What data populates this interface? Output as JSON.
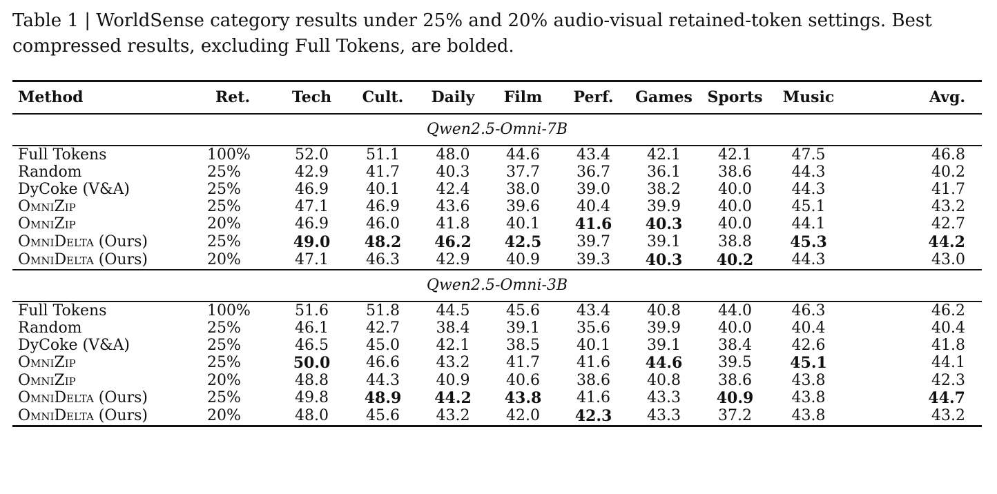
{
  "caption": "Table 1 | WorldSense category results under 25% and 20% audio-visual retained-token settings. Best compressed results, excluding Full Tokens, are bolded.",
  "columns": [
    "Method",
    "Ret.",
    "Tech",
    "Cult.",
    "Daily",
    "Film",
    "Perf.",
    "Games",
    "Sports",
    "Music",
    "Avg."
  ],
  "groups": [
    {
      "title": "Qwen2.5-Omni-7B",
      "rows": [
        {
          "method": "Full Tokens",
          "sc": false,
          "suffix": "",
          "style": "highlight",
          "cells": [
            "100%",
            "52.0",
            "51.1",
            "48.0",
            "44.6",
            "43.4",
            "42.1",
            "42.1",
            "47.5",
            "46.8"
          ],
          "bold": [
            false,
            false,
            false,
            false,
            false,
            false,
            false,
            false,
            false,
            false
          ]
        },
        {
          "method": "Random",
          "sc": false,
          "suffix": "",
          "style": "",
          "cells": [
            "25%",
            "42.9",
            "41.7",
            "40.3",
            "37.7",
            "36.7",
            "36.1",
            "38.6",
            "44.3",
            "40.2"
          ],
          "bold": [
            false,
            false,
            false,
            false,
            false,
            false,
            false,
            false,
            false,
            false
          ]
        },
        {
          "method": "DyCoke (V&A)",
          "sc": false,
          "suffix": "",
          "style": "",
          "cells": [
            "25%",
            "46.9",
            "40.1",
            "42.4",
            "38.0",
            "39.0",
            "38.2",
            "40.0",
            "44.3",
            "41.7"
          ],
          "bold": [
            false,
            false,
            false,
            false,
            false,
            false,
            false,
            false,
            false,
            false
          ]
        },
        {
          "method": "OmniZip",
          "sc": true,
          "suffix": "",
          "style": "",
          "cells": [
            "25%",
            "47.1",
            "46.9",
            "43.6",
            "39.6",
            "40.4",
            "39.9",
            "40.0",
            "45.1",
            "43.2"
          ],
          "bold": [
            false,
            false,
            false,
            false,
            false,
            false,
            false,
            false,
            false,
            false
          ]
        },
        {
          "method": "OmniZip",
          "sc": true,
          "suffix": "",
          "style": "",
          "cells": [
            "20%",
            "46.9",
            "46.0",
            "41.8",
            "40.1",
            "41.6",
            "40.3",
            "40.0",
            "44.1",
            "42.7"
          ],
          "bold": [
            false,
            false,
            false,
            false,
            false,
            true,
            true,
            false,
            false,
            false
          ]
        },
        {
          "method": "OmniDelta",
          "sc": true,
          "suffix": " (Ours)",
          "style": "ours",
          "cells": [
            "25%",
            "49.0",
            "48.2",
            "46.2",
            "42.5",
            "39.7",
            "39.1",
            "38.8",
            "45.3",
            "44.2"
          ],
          "bold": [
            false,
            true,
            true,
            true,
            true,
            false,
            false,
            false,
            true,
            true
          ]
        },
        {
          "method": "OmniDelta",
          "sc": true,
          "suffix": " (Ours)",
          "style": "ours",
          "cells": [
            "20%",
            "47.1",
            "46.3",
            "42.9",
            "40.9",
            "39.3",
            "40.3",
            "40.2",
            "44.3",
            "43.0"
          ],
          "bold": [
            false,
            false,
            false,
            false,
            false,
            false,
            true,
            true,
            false,
            false
          ]
        }
      ]
    },
    {
      "title": "Qwen2.5-Omni-3B",
      "rows": [
        {
          "method": "Full Tokens",
          "sc": false,
          "suffix": "",
          "style": "highlight",
          "cells": [
            "100%",
            "51.6",
            "51.8",
            "44.5",
            "45.6",
            "43.4",
            "40.8",
            "44.0",
            "46.3",
            "46.2"
          ],
          "bold": [
            false,
            false,
            false,
            false,
            false,
            false,
            false,
            false,
            false,
            false
          ]
        },
        {
          "method": "Random",
          "sc": false,
          "suffix": "",
          "style": "",
          "cells": [
            "25%",
            "46.1",
            "42.7",
            "38.4",
            "39.1",
            "35.6",
            "39.9",
            "40.0",
            "40.4",
            "40.4"
          ],
          "bold": [
            false,
            false,
            false,
            false,
            false,
            false,
            false,
            false,
            false,
            false
          ]
        },
        {
          "method": "DyCoke (V&A)",
          "sc": false,
          "suffix": "",
          "style": "",
          "cells": [
            "25%",
            "46.5",
            "45.0",
            "42.1",
            "38.5",
            "40.1",
            "39.1",
            "38.4",
            "42.6",
            "41.8"
          ],
          "bold": [
            false,
            false,
            false,
            false,
            false,
            false,
            false,
            false,
            false,
            false
          ]
        },
        {
          "method": "OmniZip",
          "sc": true,
          "suffix": "",
          "style": "",
          "cells": [
            "25%",
            "50.0",
            "46.6",
            "43.2",
            "41.7",
            "41.6",
            "44.6",
            "39.5",
            "45.1",
            "44.1"
          ],
          "bold": [
            false,
            true,
            false,
            false,
            false,
            false,
            true,
            false,
            true,
            false
          ]
        },
        {
          "method": "OmniZip",
          "sc": true,
          "suffix": "",
          "style": "",
          "cells": [
            "20%",
            "48.8",
            "44.3",
            "40.9",
            "40.6",
            "38.6",
            "40.8",
            "38.6",
            "43.8",
            "42.3"
          ],
          "bold": [
            false,
            false,
            false,
            false,
            false,
            false,
            false,
            false,
            false,
            false
          ]
        },
        {
          "method": "OmniDelta",
          "sc": true,
          "suffix": " (Ours)",
          "style": "ours",
          "cells": [
            "25%",
            "49.8",
            "48.9",
            "44.2",
            "43.8",
            "41.6",
            "43.3",
            "40.9",
            "43.8",
            "44.7"
          ],
          "bold": [
            false,
            false,
            true,
            true,
            true,
            false,
            false,
            true,
            false,
            true
          ]
        },
        {
          "method": "OmniDelta",
          "sc": true,
          "suffix": " (Ours)",
          "style": "ours",
          "cells": [
            "20%",
            "48.0",
            "45.6",
            "43.2",
            "42.0",
            "42.3",
            "43.3",
            "37.2",
            "43.8",
            "43.2"
          ],
          "bold": [
            false,
            false,
            false,
            false,
            false,
            true,
            false,
            false,
            false,
            false
          ]
        }
      ]
    }
  ]
}
